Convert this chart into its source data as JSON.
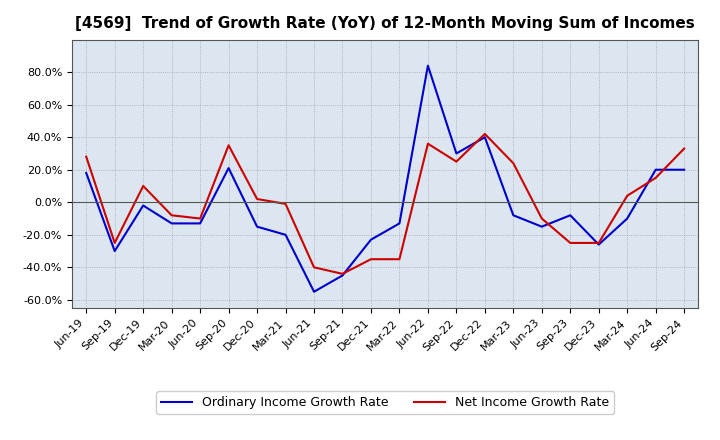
{
  "title": "[4569]  Trend of Growth Rate (YoY) of 12-Month Moving Sum of Incomes",
  "ylim": [
    -65,
    100
  ],
  "yticks": [
    -60,
    -40,
    -20,
    0,
    20,
    40,
    60,
    80
  ],
  "background_color": "#ffffff",
  "plot_bg_color": "#dce6f0",
  "grid_color": "#888888",
  "line_color_ordinary": "#0000cc",
  "line_color_net": "#cc0000",
  "line_width": 1.5,
  "legend_ordinary": "Ordinary Income Growth Rate",
  "legend_net": "Net Income Growth Rate",
  "dates": [
    "Jun-19",
    "Sep-19",
    "Dec-19",
    "Mar-20",
    "Jun-20",
    "Sep-20",
    "Dec-20",
    "Mar-21",
    "Jun-21",
    "Sep-21",
    "Dec-21",
    "Mar-22",
    "Jun-22",
    "Sep-22",
    "Dec-22",
    "Mar-23",
    "Jun-23",
    "Sep-23",
    "Dec-23",
    "Mar-24",
    "Jun-24",
    "Sep-24"
  ],
  "ordinary_income": [
    18,
    -30,
    -2,
    -13,
    -13,
    21,
    -15,
    -20,
    -55,
    -45,
    -23,
    -13,
    84,
    30,
    40,
    -8,
    -15,
    -8,
    -26,
    -10,
    20,
    20
  ],
  "net_income": [
    28,
    -25,
    10,
    -8,
    -10,
    35,
    2,
    -1,
    -40,
    -44,
    -35,
    -35,
    36,
    25,
    42,
    24,
    -10,
    -25,
    -25,
    4,
    15,
    33
  ],
  "title_fontsize": 11,
  "tick_fontsize": 8,
  "legend_fontsize": 9
}
